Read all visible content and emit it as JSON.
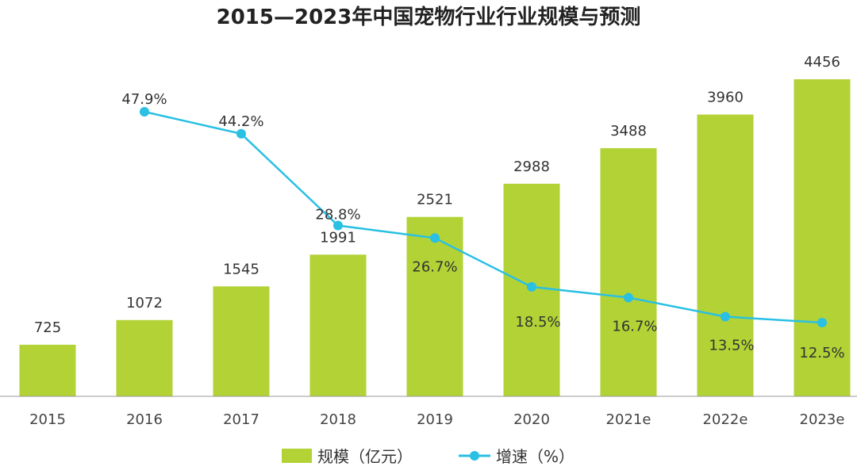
{
  "chart_data": {
    "type": "bar+line",
    "title": "2015—2023年中国宠物行业行业规模与预测",
    "categories": [
      "2015",
      "2016",
      "2017",
      "2018",
      "2019",
      "2020",
      "2021e",
      "2022e",
      "2023e"
    ],
    "series": [
      {
        "name": "规模（亿元）",
        "type": "bar",
        "values": [
          725,
          1072,
          1545,
          1991,
          2521,
          2988,
          3488,
          3960,
          4456
        ]
      },
      {
        "name": "增速（%）",
        "type": "line",
        "values": [
          null,
          47.9,
          44.2,
          28.8,
          26.7,
          18.5,
          16.7,
          13.5,
          12.5
        ],
        "labels": [
          null,
          "47.9%",
          "44.2%",
          "28.8%",
          "26.7%",
          "18.5%",
          "16.7%",
          "13.5%",
          "12.5%"
        ]
      }
    ],
    "colors": {
      "bar": "#b2d235",
      "line": "#29c0e3",
      "axis": "#999999"
    },
    "legend_position": "bottom-center",
    "grid": false
  }
}
